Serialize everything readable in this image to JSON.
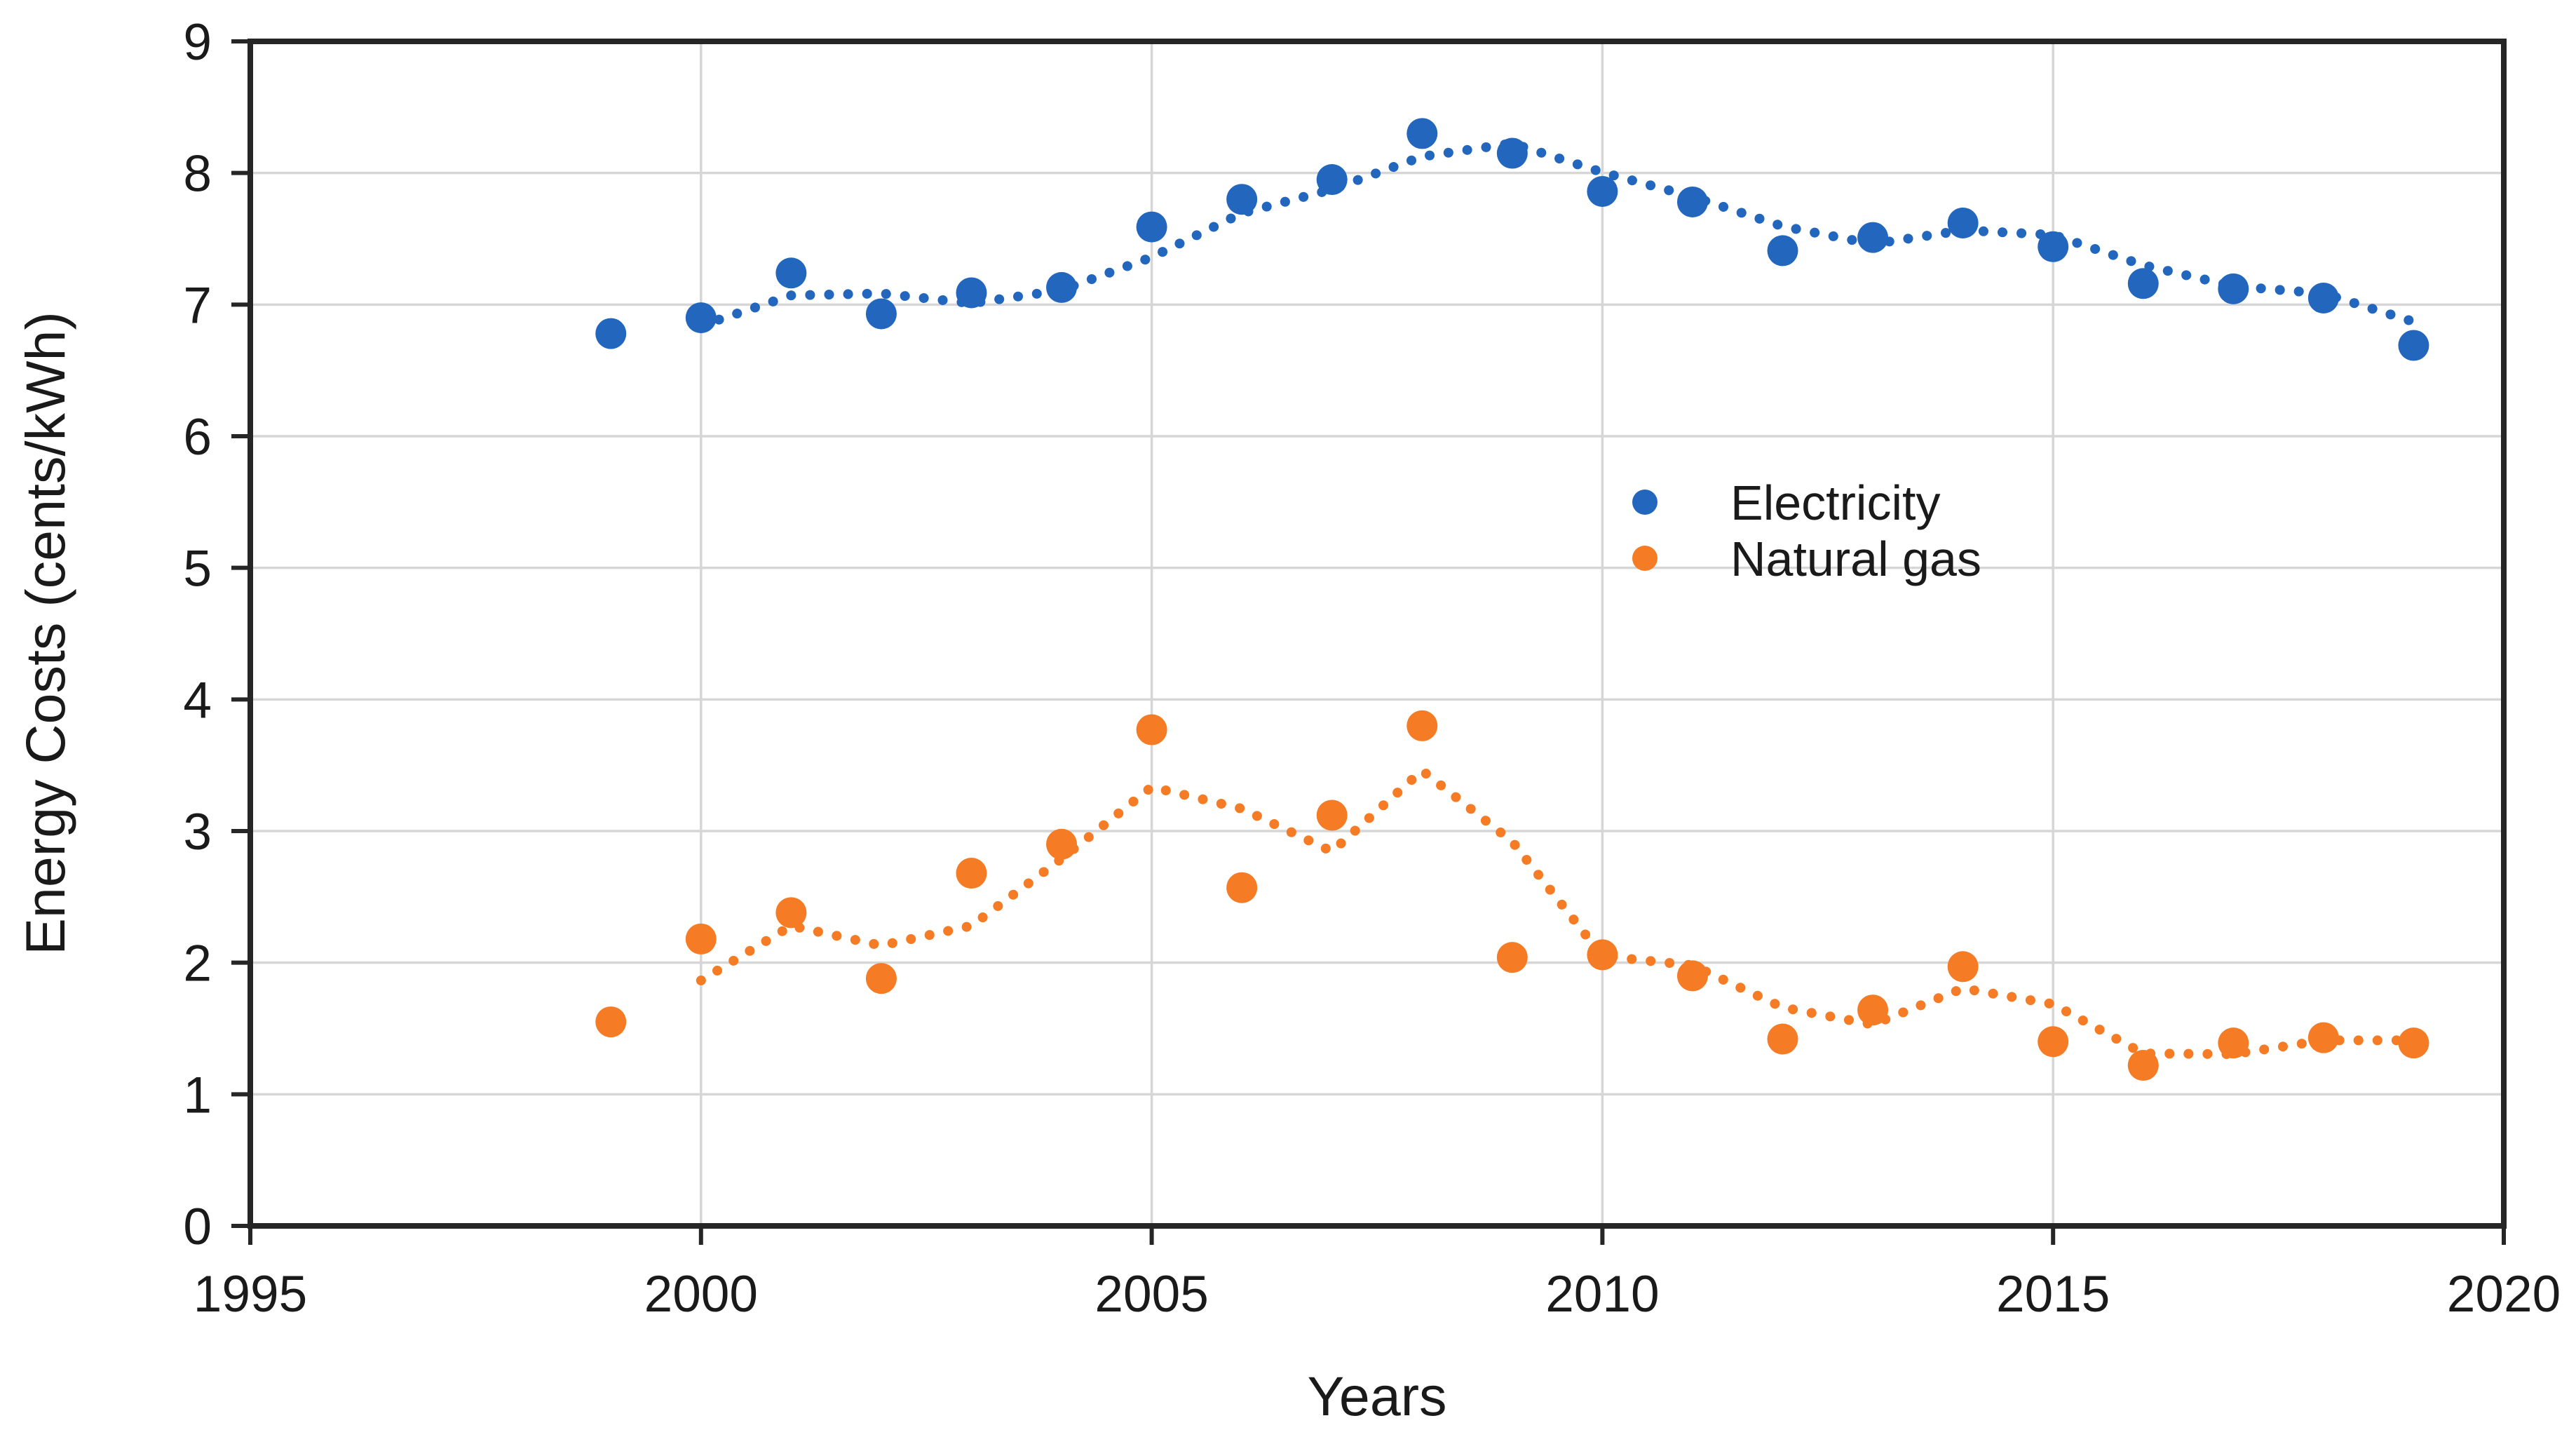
{
  "chart_data": {
    "type": "scatter",
    "title": "",
    "xlabel": "Years",
    "ylabel": "Energy Costs (cents/kWh)",
    "xlim": [
      1995,
      2020
    ],
    "ylim": [
      0,
      9
    ],
    "x_ticks": [
      1995,
      2000,
      2005,
      2010,
      2015,
      2020
    ],
    "y_ticks": [
      0,
      1,
      2,
      3,
      4,
      5,
      6,
      7,
      8,
      9
    ],
    "grid": true,
    "legend_position": "inside-center-right",
    "x": [
      1999,
      2000,
      2001,
      2002,
      2003,
      2004,
      2005,
      2006,
      2007,
      2008,
      2009,
      2010,
      2011,
      2012,
      2013,
      2014,
      2015,
      2016,
      2017,
      2018,
      2019
    ],
    "series": [
      {
        "name": "Electricity",
        "color": "#2266BE",
        "marker": "circle",
        "trendline": "2-period moving average, dotted",
        "values": [
          6.78,
          6.9,
          7.24,
          6.93,
          7.09,
          7.13,
          7.59,
          7.8,
          7.95,
          8.3,
          8.15,
          7.86,
          7.78,
          7.41,
          7.51,
          7.62,
          7.44,
          7.16,
          7.12,
          7.05,
          6.69
        ]
      },
      {
        "name": "Natural gas",
        "color": "#F57B25",
        "marker": "circle",
        "trendline": "2-period moving average, dotted",
        "values": [
          1.55,
          2.18,
          2.38,
          1.88,
          2.68,
          2.9,
          3.77,
          2.57,
          3.12,
          3.8,
          2.04,
          2.06,
          1.9,
          1.42,
          1.64,
          1.97,
          1.4,
          1.22,
          1.39,
          1.43,
          1.39
        ]
      }
    ]
  },
  "colors": {
    "background": "#FFFFFF",
    "gridline": "#D6D6D6",
    "frame": "#262626",
    "text": "#1A1A1A"
  }
}
